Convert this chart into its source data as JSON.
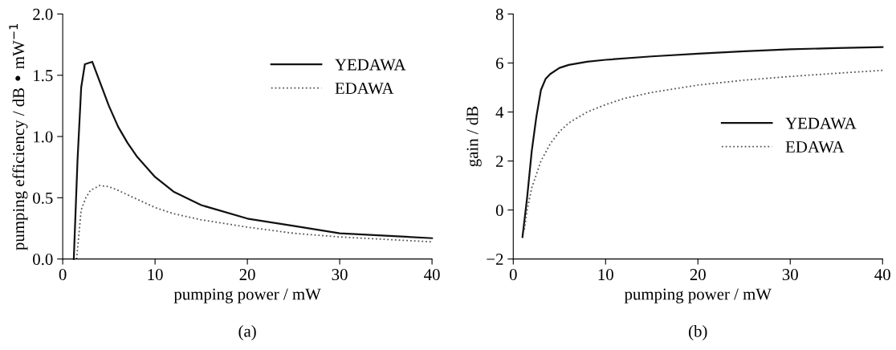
{
  "chart_data": [
    {
      "type": "line",
      "xlabel": "pumping power / mW",
      "ylabel": "pumping efficiency / dB • mW$^{−1}$",
      "xlim": [
        0,
        40
      ],
      "ylim": [
        0,
        2
      ],
      "xticks": [
        0,
        10,
        20,
        30,
        40
      ],
      "yticks": [
        {
          "value": 0,
          "label": "0.0"
        },
        0.5,
        {
          "value": 1,
          "label": "1.0"
        },
        1.5,
        {
          "value": 2,
          "label": "2.0"
        }
      ],
      "grid": false,
      "legend": "top right",
      "marker": "none",
      "annotations": [
        "(a)"
      ],
      "series": [
        {
          "name": "YEDAWA",
          "color": "#111111",
          "line_style": "solid",
          "x": [
            1.2,
            1.6,
            2.0,
            2.4,
            3.2,
            4,
            5,
            6,
            7,
            8,
            10,
            12,
            15,
            20,
            25,
            30,
            35,
            40
          ],
          "values": [
            0,
            0.8,
            1.4,
            1.59,
            1.61,
            1.45,
            1.25,
            1.08,
            0.95,
            0.84,
            0.67,
            0.55,
            0.44,
            0.33,
            0.27,
            0.21,
            0.19,
            0.17
          ]
        },
        {
          "name": "EDAWA",
          "color": "#555555",
          "line_style": "dotted",
          "x": [
            1.5,
            2,
            2.5,
            3,
            4,
            5,
            6,
            8,
            10,
            12,
            15,
            20,
            25,
            30,
            35,
            40
          ],
          "values": [
            0,
            0.4,
            0.5,
            0.56,
            0.6,
            0.59,
            0.56,
            0.49,
            0.42,
            0.37,
            0.32,
            0.26,
            0.21,
            0.18,
            0.16,
            0.14
          ]
        }
      ]
    },
    {
      "type": "line",
      "xlabel": "pumping power / mW",
      "ylabel": "gain / dB",
      "xlim": [
        0,
        40
      ],
      "ylim": [
        -2,
        8
      ],
      "xticks": [
        0,
        10,
        20,
        30,
        40
      ],
      "yticks": [
        {
          "value": -2,
          "label": "−2"
        },
        0,
        2,
        4,
        6,
        8
      ],
      "grid": false,
      "legend": "right",
      "marker": "none",
      "annotations": [
        "(b)"
      ],
      "series": [
        {
          "name": "YEDAWA",
          "color": "#111111",
          "line_style": "solid",
          "x": [
            1,
            1.5,
            2,
            2.5,
            3,
            3.5,
            4,
            5,
            6,
            8,
            10,
            15,
            20,
            25,
            30,
            35,
            40
          ],
          "values": [
            -1.1,
            0.5,
            2.4,
            3.8,
            4.9,
            5.35,
            5.55,
            5.8,
            5.92,
            6.05,
            6.13,
            6.27,
            6.38,
            6.48,
            6.56,
            6.61,
            6.65
          ]
        },
        {
          "name": "EDAWA",
          "color": "#555555",
          "line_style": "dotted",
          "x": [
            1.2,
            1.5,
            2,
            3,
            4,
            5,
            6,
            8,
            10,
            12,
            15,
            20,
            25,
            30,
            35,
            40
          ],
          "values": [
            -0.8,
            0,
            0.9,
            2,
            2.7,
            3.2,
            3.55,
            4.0,
            4.3,
            4.55,
            4.8,
            5.1,
            5.3,
            5.45,
            5.58,
            5.7
          ]
        }
      ]
    }
  ]
}
